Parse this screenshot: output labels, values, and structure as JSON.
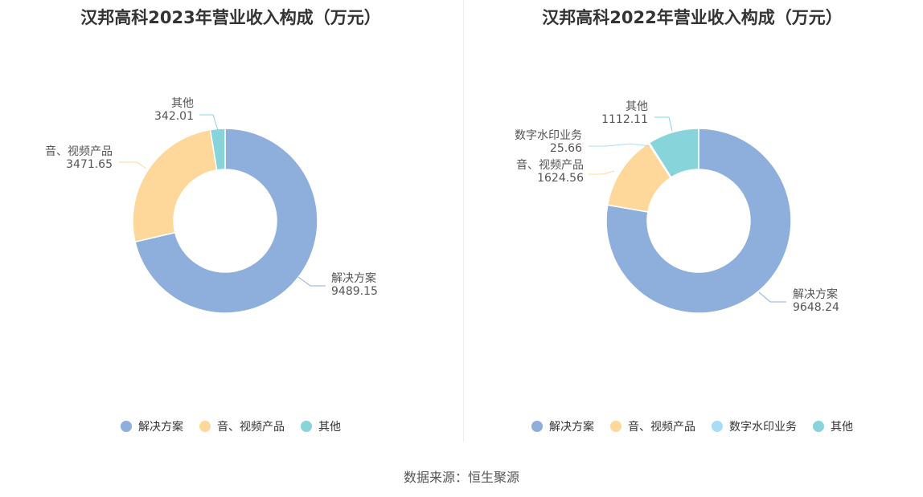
{
  "colors": {
    "解决方案": "#8eaedc",
    "音、视频产品": "#fdd89a",
    "数字水印业务": "#a9dcf7",
    "其他": "#87d4da"
  },
  "chart_data": [
    {
      "type": "pie",
      "title": "汉邦高科2023年营业收入构成（万元）",
      "slices": [
        {
          "label": "解决方案",
          "value": 9489.15,
          "display": "9489.15"
        },
        {
          "label": "音、视频产品",
          "value": 3471.65,
          "display": "3471.65"
        },
        {
          "label": "其他",
          "value": 342.01,
          "display": "342.01"
        }
      ],
      "legend": [
        "解决方案",
        "音、视频产品",
        "其他"
      ],
      "legend_position": "bottom"
    },
    {
      "type": "pie",
      "title": "汉邦高科2022年营业收入构成（万元）",
      "slices": [
        {
          "label": "解决方案",
          "value": 9648.24,
          "display": "9648.24"
        },
        {
          "label": "音、视频产品",
          "value": 1624.56,
          "display": "1624.56"
        },
        {
          "label": "数字水印业务",
          "value": 25.66,
          "display": "25.66"
        },
        {
          "label": "其他",
          "value": 1112.11,
          "display": "1112.11"
        }
      ],
      "legend": [
        "解决方案",
        "音、视频产品",
        "数字水印业务",
        "其他"
      ],
      "legend_position": "bottom"
    }
  ],
  "source_text": "数据来源：恒生聚源"
}
